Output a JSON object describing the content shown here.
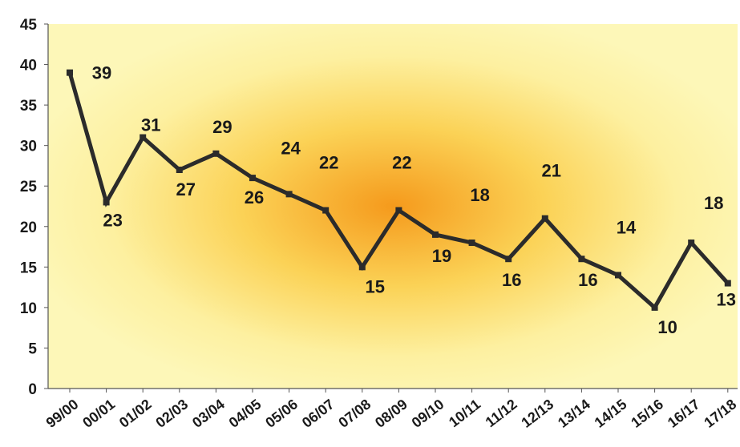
{
  "chart_data": {
    "type": "line",
    "title": "",
    "xlabel": "",
    "ylabel": "",
    "ylim": [
      0,
      45
    ],
    "yticks": [
      0,
      5,
      10,
      15,
      20,
      25,
      30,
      35,
      40,
      45
    ],
    "grid": false,
    "legend": "none",
    "categories": [
      "99/00",
      "00/01",
      "01/02",
      "02/03",
      "03/04",
      "04/05",
      "05/06",
      "06/07",
      "07/08",
      "08/09",
      "09/10",
      "10/11",
      "11/12",
      "12/13",
      "13/14",
      "14/15",
      "15/16",
      "16/17",
      "17/18"
    ],
    "series": [
      {
        "values": [
          39,
          23,
          31,
          27,
          29,
          26,
          24,
          22,
          15,
          22,
          19,
          18,
          16,
          21,
          16,
          14,
          10,
          18,
          13
        ]
      }
    ],
    "data_labels": [
      "39",
      "23",
      "31",
      "27",
      "29",
      "26",
      "24",
      "22",
      "15",
      "22",
      "19",
      "18",
      "16",
      "21",
      "16",
      "14",
      "10",
      "18",
      "13"
    ],
    "colors": {
      "line": "#2b2b2b",
      "plot_bg_center": "#f59a1c",
      "plot_bg_outer": "#fdf7b0",
      "axis": "#555555"
    }
  }
}
